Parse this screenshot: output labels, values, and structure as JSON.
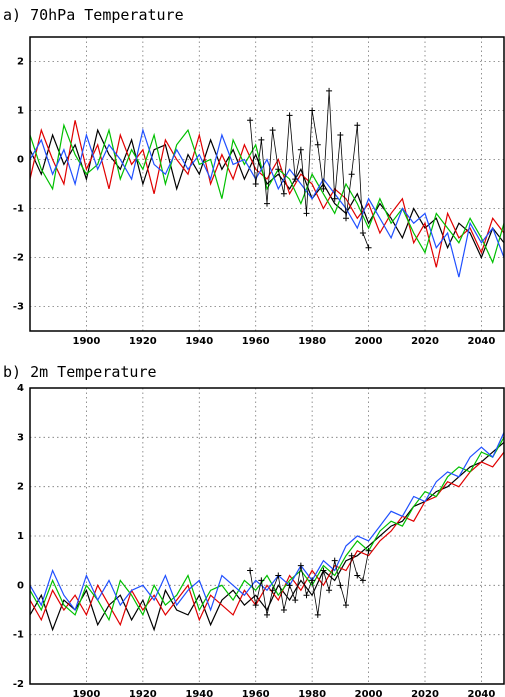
{
  "chart_data": [
    {
      "type": "line",
      "title": "a) 70hPa Temperature",
      "x": [
        1880,
        1884,
        1888,
        1892,
        1896,
        1900,
        1904,
        1908,
        1912,
        1916,
        1920,
        1924,
        1928,
        1932,
        1936,
        1940,
        1944,
        1948,
        1952,
        1956,
        1960,
        1964,
        1968,
        1972,
        1976,
        1980,
        1984,
        1988,
        1992,
        1996,
        2000,
        2004,
        2008,
        2012,
        2016,
        2020,
        2024,
        2028,
        2032,
        2036,
        2040,
        2044,
        2048
      ],
      "series": [
        {
          "color": "#000000",
          "values": [
            0.2,
            -0.3,
            0.5,
            -0.1,
            0.3,
            -0.4,
            0.6,
            0.1,
            -0.2,
            0.4,
            -0.5,
            0.2,
            0.3,
            -0.6,
            0.1,
            -0.3,
            0.4,
            -0.2,
            0.2,
            -0.4,
            0.1,
            -0.5,
            -0.3,
            -0.6,
            -0.2,
            -0.8,
            -0.5,
            -0.9,
            -1.1,
            -0.7,
            -1.3,
            -0.9,
            -1.2,
            -1.6,
            -1.0,
            -1.4,
            -1.2,
            -1.8,
            -1.3,
            -1.5,
            -2.0,
            -1.4,
            -1.7
          ]
        },
        {
          "color": "#e00000",
          "values": [
            -0.4,
            0.6,
            0.0,
            -0.5,
            0.8,
            -0.2,
            0.3,
            -0.6,
            0.5,
            -0.1,
            0.2,
            -0.7,
            0.4,
            0.0,
            -0.3,
            0.5,
            -0.5,
            0.1,
            -0.4,
            0.3,
            -0.2,
            -0.4,
            0.0,
            -0.7,
            -0.3,
            -0.5,
            -1.0,
            -0.6,
            -0.8,
            -1.2,
            -0.9,
            -1.5,
            -1.1,
            -0.8,
            -1.7,
            -1.3,
            -2.2,
            -1.1,
            -1.6,
            -1.4,
            -1.9,
            -1.2,
            -1.5
          ]
        },
        {
          "color": "#00c000",
          "values": [
            0.5,
            -0.2,
            -0.6,
            0.7,
            0.1,
            -0.3,
            -0.1,
            0.6,
            -0.4,
            0.2,
            -0.2,
            0.5,
            -0.5,
            0.3,
            0.6,
            -0.1,
            0.0,
            -0.8,
            0.4,
            -0.1,
            0.3,
            -0.6,
            -0.2,
            -0.4,
            -0.9,
            -0.3,
            -0.7,
            -1.1,
            -0.5,
            -0.9,
            -1.4,
            -0.8,
            -1.3,
            -1.0,
            -1.5,
            -1.9,
            -1.1,
            -1.4,
            -1.7,
            -1.2,
            -1.6,
            -2.1,
            -1.3
          ]
        },
        {
          "color": "#2050ff",
          "values": [
            0.0,
            0.4,
            -0.3,
            0.2,
            -0.5,
            0.5,
            -0.2,
            0.3,
            0.0,
            -0.4,
            0.6,
            -0.1,
            -0.3,
            0.2,
            -0.2,
            0.1,
            -0.4,
            0.5,
            -0.1,
            0.0,
            -0.4,
            0.0,
            -0.6,
            -0.2,
            -0.5,
            -0.8,
            -0.4,
            -0.7,
            -1.0,
            -1.4,
            -0.8,
            -1.2,
            -1.6,
            -1.0,
            -1.3,
            -1.1,
            -1.8,
            -1.5,
            -2.4,
            -1.3,
            -1.7,
            -1.4,
            -2.0
          ]
        }
      ],
      "obs": {
        "color": "#000000",
        "marker": "+",
        "x": [
          1958,
          1960,
          1962,
          1964,
          1966,
          1968,
          1970,
          1972,
          1974,
          1976,
          1978,
          1980,
          1982,
          1984,
          1986,
          1988,
          1990,
          1992,
          1994,
          1996,
          1998,
          2000
        ],
        "values": [
          0.8,
          -0.5,
          0.4,
          -0.9,
          0.6,
          -0.2,
          -0.7,
          0.9,
          -0.4,
          0.2,
          -1.1,
          1.0,
          0.3,
          -0.6,
          1.4,
          -0.8,
          0.5,
          -1.2,
          -0.3,
          0.7,
          -1.5,
          -1.8
        ]
      },
      "xlim": [
        1880,
        2048
      ],
      "xticks": [
        1900,
        1920,
        1940,
        1960,
        1980,
        2000,
        2020,
        2040
      ],
      "ylim": [
        -3.5,
        2.5
      ],
      "yticks": [
        -3,
        -2,
        -1,
        0,
        1,
        2
      ],
      "grid": true
    },
    {
      "type": "line",
      "title": "b) 2m Temperature",
      "x": [
        1880,
        1884,
        1888,
        1892,
        1896,
        1900,
        1904,
        1908,
        1912,
        1916,
        1920,
        1924,
        1928,
        1932,
        1936,
        1940,
        1944,
        1948,
        1952,
        1956,
        1960,
        1964,
        1968,
        1972,
        1976,
        1980,
        1984,
        1988,
        1992,
        1996,
        2000,
        2004,
        2008,
        2012,
        2016,
        2020,
        2024,
        2028,
        2032,
        2036,
        2040,
        2044,
        2048
      ],
      "series": [
        {
          "color": "#000000",
          "values": [
            -0.6,
            -0.2,
            -0.9,
            -0.3,
            -0.5,
            -0.1,
            -0.8,
            -0.4,
            -0.2,
            -0.7,
            -0.3,
            -0.9,
            -0.1,
            -0.5,
            -0.6,
            -0.2,
            -0.8,
            -0.3,
            -0.1,
            -0.4,
            -0.2,
            -0.5,
            0.0,
            -0.3,
            0.1,
            -0.2,
            0.3,
            0.1,
            0.5,
            0.6,
            0.8,
            1.0,
            1.2,
            1.3,
            1.6,
            1.7,
            1.9,
            2.0,
            2.2,
            2.4,
            2.5,
            2.7,
            2.9
          ]
        },
        {
          "color": "#e00000",
          "values": [
            -0.3,
            -0.7,
            -0.1,
            -0.5,
            -0.2,
            -0.6,
            0.0,
            -0.4,
            -0.8,
            -0.1,
            -0.5,
            -0.2,
            -0.6,
            -0.3,
            0.0,
            -0.7,
            -0.2,
            -0.4,
            -0.6,
            -0.1,
            -0.4,
            0.0,
            -0.3,
            0.2,
            -0.1,
            0.3,
            0.0,
            0.4,
            0.3,
            0.7,
            0.6,
            0.9,
            1.1,
            1.4,
            1.3,
            1.7,
            1.8,
            2.1,
            2.0,
            2.3,
            2.5,
            2.4,
            2.7
          ]
        },
        {
          "color": "#00c000",
          "values": [
            -0.1,
            -0.5,
            0.1,
            -0.4,
            -0.6,
            0.0,
            -0.3,
            -0.7,
            0.1,
            -0.2,
            -0.6,
            0.0,
            -0.4,
            -0.2,
            0.2,
            -0.5,
            -0.1,
            0.0,
            -0.3,
            0.1,
            -0.1,
            0.2,
            -0.2,
            0.1,
            0.3,
            0.0,
            0.4,
            0.2,
            0.6,
            0.9,
            0.7,
            1.1,
            1.3,
            1.2,
            1.6,
            1.9,
            1.8,
            2.2,
            2.4,
            2.3,
            2.7,
            2.6,
            3.0
          ]
        },
        {
          "color": "#2050ff",
          "values": [
            0.0,
            -0.4,
            0.3,
            -0.2,
            -0.5,
            0.2,
            -0.3,
            0.1,
            -0.4,
            -0.1,
            0.0,
            -0.3,
            0.2,
            -0.4,
            -0.1,
            0.1,
            -0.5,
            0.2,
            0.0,
            -0.2,
            0.1,
            -0.1,
            0.2,
            0.0,
            0.4,
            0.1,
            0.5,
            0.3,
            0.8,
            1.0,
            0.9,
            1.2,
            1.5,
            1.4,
            1.8,
            1.7,
            2.1,
            2.3,
            2.2,
            2.6,
            2.8,
            2.6,
            3.1
          ]
        }
      ],
      "obs": {
        "color": "#000000",
        "marker": "+",
        "x": [
          1958,
          1960,
          1962,
          1964,
          1966,
          1968,
          1970,
          1972,
          1974,
          1976,
          1978,
          1980,
          1982,
          1984,
          1986,
          1988,
          1990,
          1992,
          1994,
          1996,
          1998,
          2000
        ],
        "values": [
          0.3,
          -0.4,
          0.1,
          -0.6,
          -0.1,
          0.2,
          -0.5,
          0.0,
          -0.3,
          0.4,
          -0.2,
          0.1,
          -0.6,
          0.3,
          -0.1,
          0.5,
          0.0,
          -0.4,
          0.6,
          0.2,
          0.1,
          0.7
        ]
      },
      "xlim": [
        1880,
        2048
      ],
      "xticks": [
        1900,
        1920,
        1940,
        1960,
        1980,
        2000,
        2020,
        2040
      ],
      "ylim": [
        -2,
        4
      ],
      "yticks": [
        -2,
        -1,
        0,
        1,
        2,
        3,
        4
      ],
      "grid": true
    }
  ]
}
